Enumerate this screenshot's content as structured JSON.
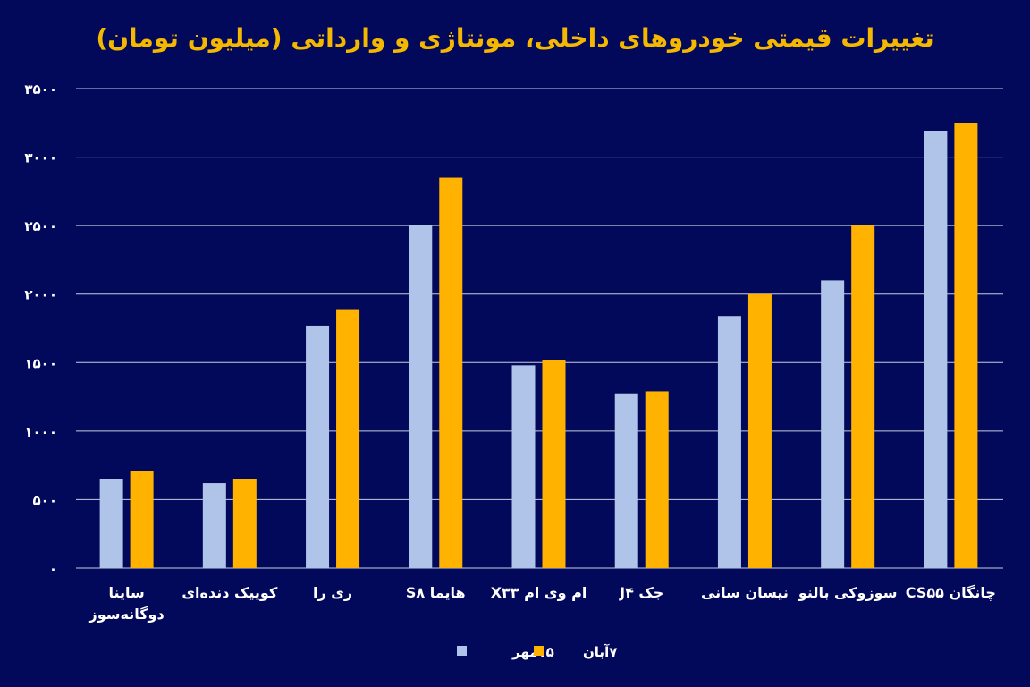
{
  "chart_data": {
    "type": "bar",
    "title": "تغییرات قیمتی خودروهای داخلی، مونتاژی و وارداتی (میلیون تومان)",
    "xlabel": "",
    "ylabel": "",
    "ylim": [
      0,
      3500
    ],
    "yticks": [
      0,
      500,
      1000,
      1500,
      2000,
      2500,
      3000,
      3500
    ],
    "ytick_labels": [
      "۰",
      "۵۰۰",
      "۱۰۰۰",
      "۱۵۰۰",
      "۲۰۰۰",
      "۲۵۰۰",
      "۳۰۰۰",
      "۳۵۰۰"
    ],
    "grid": true,
    "legend_placement": "bottom-center",
    "categories": [
      [
        "ساینا",
        "دوگانه‌سوز"
      ],
      [
        "کوییک دنده‌ای"
      ],
      [
        "ری را"
      ],
      [
        "هایما S۸"
      ],
      [
        "ام وی ام X۳۳"
      ],
      [
        "جک J۴"
      ],
      [
        "نیسان سانی"
      ],
      [
        "سوزوکی بالنو"
      ],
      [
        "چانگان CS۵۵"
      ]
    ],
    "series": [
      {
        "name": "۱۵مهر",
        "color": "#afc4e8",
        "values": [
          650,
          620,
          1770,
          2500,
          1480,
          1275,
          1840,
          2100,
          3190
        ]
      },
      {
        "name": "۷آبان",
        "color": "#ffb300",
        "values": [
          710,
          650,
          1890,
          2850,
          1515,
          1290,
          2000,
          2500,
          3250
        ]
      }
    ],
    "colors": {
      "background": "#02095a",
      "title": "#f5b800",
      "grid": "#c8cce0"
    }
  }
}
